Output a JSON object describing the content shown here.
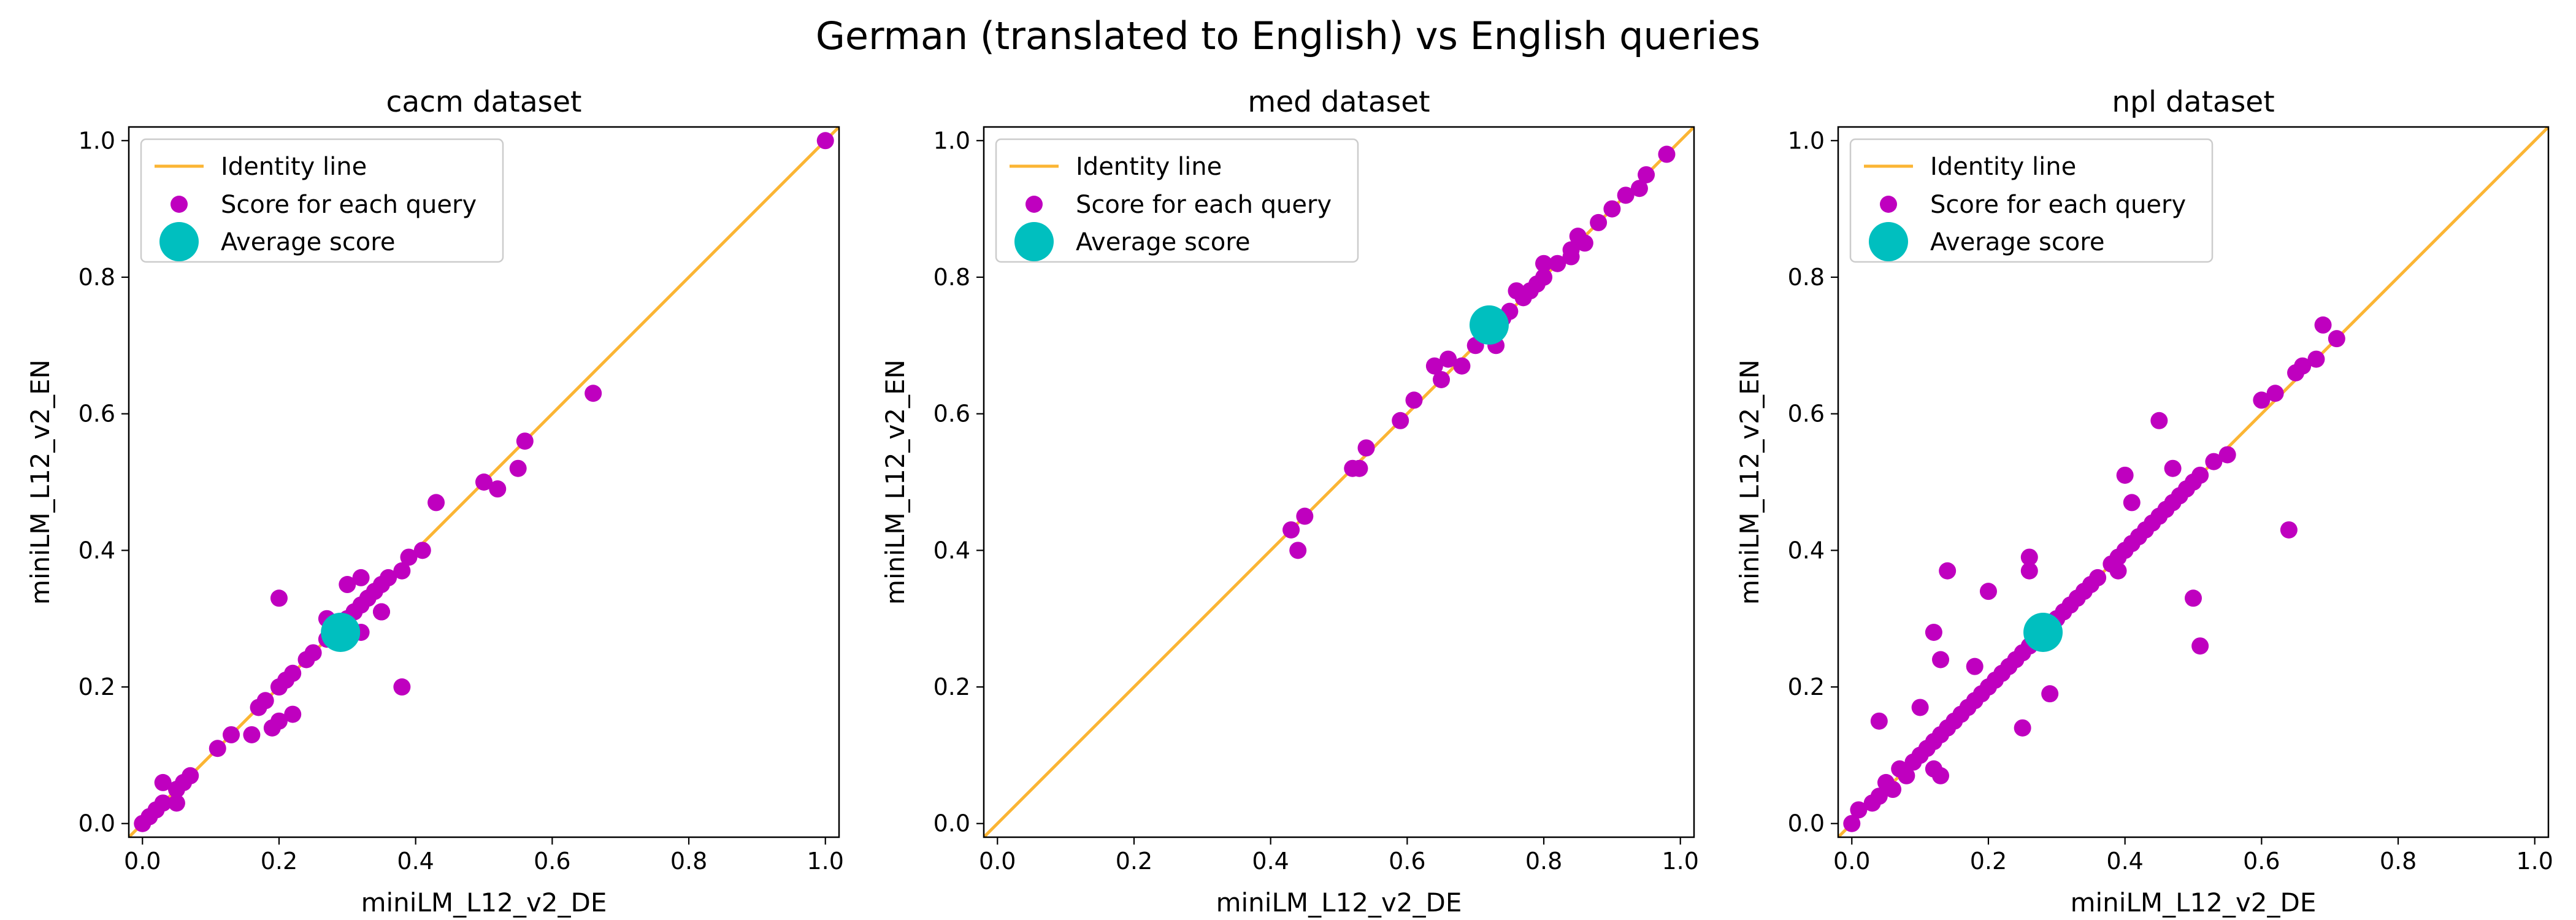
{
  "figure": {
    "title": "German (translated to English) vs English queries"
  },
  "legend_labels": {
    "identity": "Identity line",
    "scores": "Score for each query",
    "average": "Average score"
  },
  "colors": {
    "identity": "#fbb534",
    "scores": "#bf00bf",
    "average": "#00bfbf",
    "axes": "#000000"
  },
  "chart_data": [
    {
      "type": "scatter",
      "title": "cacm dataset",
      "xlabel": "miniLM_L12_v2_DE",
      "ylabel": "miniLM_L12_v2_EN",
      "xlim": [
        -0.02,
        1.02
      ],
      "ylim": [
        -0.02,
        1.02
      ],
      "xticks": [
        "0.0",
        "0.2",
        "0.4",
        "0.6",
        "0.8",
        "1.0"
      ],
      "yticks": [
        "0.0",
        "0.2",
        "0.4",
        "0.6",
        "0.8",
        "1.0"
      ],
      "legend_position": "upper-left",
      "grid": false,
      "series": [
        {
          "name": "Identity line",
          "type": "line",
          "x": [
            -0.02,
            1.02
          ],
          "y": [
            -0.02,
            1.02
          ]
        },
        {
          "name": "Score for each query",
          "type": "scatter",
          "x": [
            1.0,
            0.0,
            0.01,
            0.02,
            0.03,
            0.05,
            0.06,
            0.03,
            0.05,
            0.07,
            0.11,
            0.13,
            0.16,
            0.17,
            0.18,
            0.19,
            0.2,
            0.2,
            0.21,
            0.22,
            0.22,
            0.24,
            0.25,
            0.27,
            0.28,
            0.29,
            0.3,
            0.31,
            0.32,
            0.33,
            0.34,
            0.35,
            0.36,
            0.3,
            0.32,
            0.32,
            0.35,
            0.35,
            0.38,
            0.39,
            0.41,
            0.43,
            0.5,
            0.52,
            0.55,
            0.56,
            0.66,
            0.2,
            0.27,
            0.38
          ],
          "y": [
            1.0,
            0.0,
            0.01,
            0.02,
            0.03,
            0.05,
            0.06,
            0.06,
            0.03,
            0.07,
            0.11,
            0.13,
            0.13,
            0.17,
            0.18,
            0.14,
            0.15,
            0.2,
            0.21,
            0.22,
            0.16,
            0.24,
            0.25,
            0.27,
            0.29,
            0.28,
            0.3,
            0.31,
            0.32,
            0.33,
            0.34,
            0.35,
            0.36,
            0.35,
            0.36,
            0.28,
            0.31,
            0.31,
            0.37,
            0.39,
            0.4,
            0.47,
            0.5,
            0.49,
            0.52,
            0.56,
            0.63,
            0.33,
            0.3,
            0.2
          ]
        },
        {
          "name": "Average score",
          "type": "scatter",
          "x": [
            0.29
          ],
          "y": [
            0.28
          ]
        }
      ]
    },
    {
      "type": "scatter",
      "title": "med dataset",
      "xlabel": "miniLM_L12_v2_DE",
      "ylabel": "miniLM_L12_v2_EN",
      "xlim": [
        -0.02,
        1.02
      ],
      "ylim": [
        -0.02,
        1.02
      ],
      "xticks": [
        "0.0",
        "0.2",
        "0.4",
        "0.6",
        "0.8",
        "1.0"
      ],
      "yticks": [
        "0.0",
        "0.2",
        "0.4",
        "0.6",
        "0.8",
        "1.0"
      ],
      "legend_position": "upper-left",
      "grid": false,
      "series": [
        {
          "name": "Identity line",
          "type": "line",
          "x": [
            -0.02,
            1.02
          ],
          "y": [
            -0.02,
            1.02
          ]
        },
        {
          "name": "Score for each query",
          "type": "scatter",
          "x": [
            0.43,
            0.44,
            0.45,
            0.52,
            0.53,
            0.54,
            0.59,
            0.61,
            0.64,
            0.65,
            0.66,
            0.68,
            0.7,
            0.72,
            0.73,
            0.74,
            0.76,
            0.77,
            0.78,
            0.79,
            0.8,
            0.82,
            0.84,
            0.85,
            0.86,
            0.88,
            0.9,
            0.92,
            0.94,
            0.95,
            0.98,
            0.75,
            0.8,
            0.84
          ],
          "y": [
            0.43,
            0.4,
            0.45,
            0.52,
            0.52,
            0.55,
            0.59,
            0.62,
            0.67,
            0.65,
            0.68,
            0.67,
            0.7,
            0.72,
            0.7,
            0.74,
            0.78,
            0.77,
            0.78,
            0.79,
            0.8,
            0.82,
            0.84,
            0.86,
            0.85,
            0.88,
            0.9,
            0.92,
            0.93,
            0.95,
            0.98,
            0.75,
            0.82,
            0.83
          ]
        },
        {
          "name": "Average score",
          "type": "scatter",
          "x": [
            0.72
          ],
          "y": [
            0.73
          ]
        }
      ]
    },
    {
      "type": "scatter",
      "title": "npl dataset",
      "xlabel": "miniLM_L12_v2_DE",
      "ylabel": "miniLM_L12_v2_EN",
      "xlim": [
        -0.02,
        1.02
      ],
      "ylim": [
        -0.02,
        1.02
      ],
      "xticks": [
        "0.0",
        "0.2",
        "0.4",
        "0.6",
        "0.8",
        "1.0"
      ],
      "yticks": [
        "0.0",
        "0.2",
        "0.4",
        "0.6",
        "0.8",
        "1.0"
      ],
      "legend_position": "upper-left",
      "grid": false,
      "series": [
        {
          "name": "Identity line",
          "type": "line",
          "x": [
            -0.02,
            1.02
          ],
          "y": [
            -0.02,
            1.02
          ]
        },
        {
          "name": "Score for each query",
          "type": "scatter",
          "x": [
            0.0,
            0.01,
            0.03,
            0.04,
            0.05,
            0.06,
            0.07,
            0.08,
            0.09,
            0.1,
            0.11,
            0.12,
            0.13,
            0.14,
            0.15,
            0.16,
            0.17,
            0.18,
            0.19,
            0.2,
            0.21,
            0.22,
            0.23,
            0.24,
            0.25,
            0.26,
            0.27,
            0.28,
            0.29,
            0.3,
            0.31,
            0.32,
            0.33,
            0.34,
            0.35,
            0.36,
            0.38,
            0.39,
            0.4,
            0.41,
            0.42,
            0.43,
            0.44,
            0.45,
            0.46,
            0.47,
            0.48,
            0.49,
            0.5,
            0.51,
            0.53,
            0.55,
            0.6,
            0.62,
            0.65,
            0.66,
            0.68,
            0.69,
            0.71,
            0.04,
            0.1,
            0.12,
            0.13,
            0.14,
            0.2,
            0.12,
            0.13,
            0.18,
            0.25,
            0.26,
            0.29,
            0.26,
            0.39,
            0.4,
            0.41,
            0.45,
            0.47,
            0.5,
            0.51,
            0.64
          ],
          "y": [
            0.0,
            0.02,
            0.03,
            0.04,
            0.06,
            0.05,
            0.08,
            0.07,
            0.09,
            0.1,
            0.11,
            0.12,
            0.13,
            0.14,
            0.15,
            0.16,
            0.17,
            0.18,
            0.19,
            0.2,
            0.21,
            0.22,
            0.23,
            0.24,
            0.25,
            0.26,
            0.27,
            0.28,
            0.29,
            0.3,
            0.31,
            0.32,
            0.33,
            0.34,
            0.35,
            0.36,
            0.38,
            0.39,
            0.4,
            0.41,
            0.42,
            0.43,
            0.44,
            0.45,
            0.46,
            0.47,
            0.48,
            0.49,
            0.5,
            0.51,
            0.53,
            0.54,
            0.62,
            0.63,
            0.66,
            0.67,
            0.68,
            0.73,
            0.71,
            0.15,
            0.17,
            0.28,
            0.24,
            0.37,
            0.34,
            0.08,
            0.07,
            0.23,
            0.14,
            0.39,
            0.19,
            0.37,
            0.37,
            0.51,
            0.47,
            0.59,
            0.52,
            0.33,
            0.26,
            0.43
          ]
        },
        {
          "name": "Average score",
          "type": "scatter",
          "x": [
            0.28
          ],
          "y": [
            0.28
          ]
        }
      ]
    }
  ]
}
